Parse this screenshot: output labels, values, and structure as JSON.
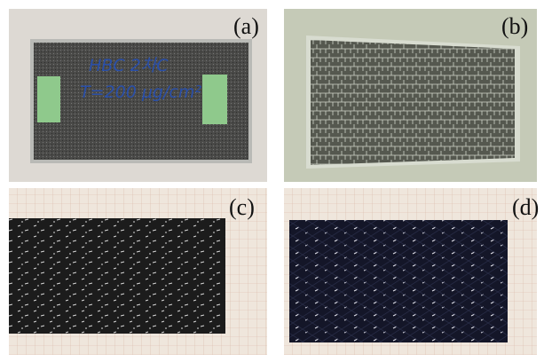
{
  "panels": [
    {
      "label": "(a)"
    },
    {
      "label": "(b)"
    },
    {
      "label": "(c)"
    },
    {
      "label": "(d)"
    }
  ],
  "sample_writing": [
    "HBC 2차C",
    "T=200 μg/cm²"
  ]
}
